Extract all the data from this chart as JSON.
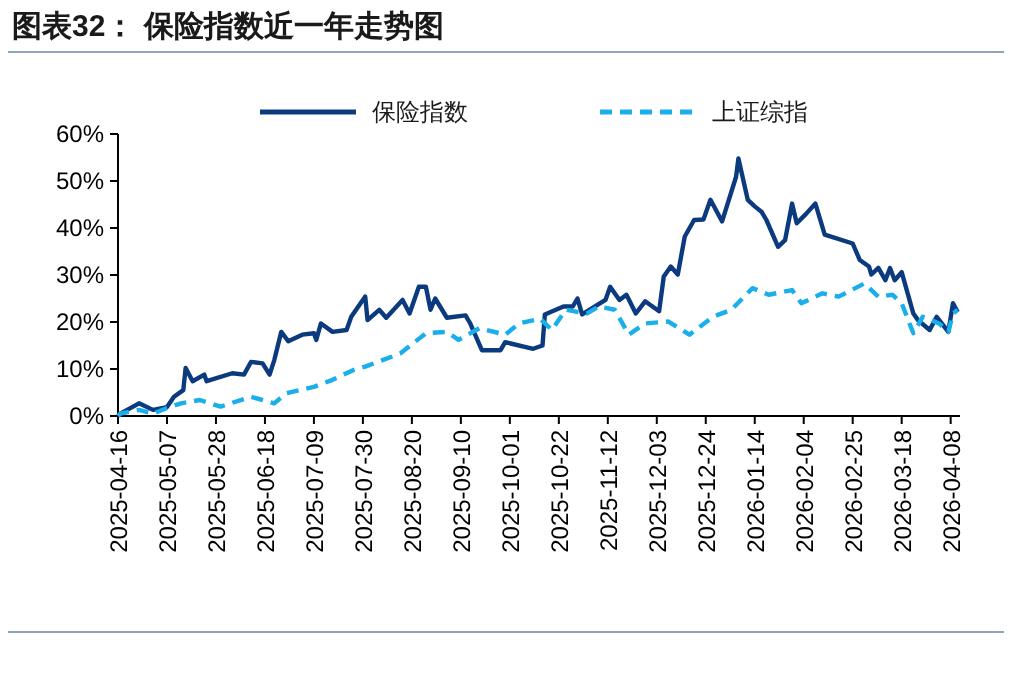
{
  "chart_data": {
    "type": "line",
    "title": "图表32： 保险指数近一年走势图",
    "legend": "top",
    "grid": false,
    "xlim": [
      "2025-04-16",
      "2026-04-12"
    ],
    "xticks": [
      "2025-04-16",
      "2025-05-07",
      "2025-05-28",
      "2025-06-18",
      "2025-07-09",
      "2025-07-30",
      "2025-08-20",
      "2025-09-10",
      "2025-10-01",
      "2025-10-22",
      "2025-11-12",
      "2025-12-03",
      "2025-12-24",
      "2026-01-14",
      "2026-02-04",
      "2026-02-25",
      "2026-03-18",
      "2026-04-08"
    ],
    "ylim": [
      0,
      60
    ],
    "yticks": [
      {
        "value": 0,
        "label": "0%"
      },
      {
        "value": 10,
        "label": "10%"
      },
      {
        "value": 20,
        "label": "20%"
      },
      {
        "value": 30,
        "label": "30%"
      },
      {
        "value": 40,
        "label": "40%"
      },
      {
        "value": 50,
        "label": "50%"
      },
      {
        "value": 60,
        "label": "60%"
      }
    ],
    "series": [
      {
        "name": "保险指数",
        "color": "#0b3a7e",
        "line_style": "solid",
        "x": [
          "2025-04-16",
          "2025-04-17",
          "2025-04-25",
          "2025-05-01",
          "2025-05-07",
          "2025-05-10",
          "2025-05-14",
          "2025-05-15",
          "2025-05-18",
          "2025-05-23",
          "2025-05-24",
          "2025-06-04",
          "2025-06-09",
          "2025-06-12",
          "2025-06-17",
          "2025-06-20",
          "2025-06-22",
          "2025-06-25",
          "2025-06-28",
          "2025-07-04",
          "2025-07-09",
          "2025-07-10",
          "2025-07-12",
          "2025-07-17",
          "2025-07-23",
          "2025-07-25",
          "2025-07-29",
          "2025-07-31",
          "2025-08-01",
          "2025-08-06",
          "2025-08-09",
          "2025-08-16",
          "2025-08-19",
          "2025-08-23",
          "2025-08-26",
          "2025-08-28",
          "2025-08-30",
          "2025-09-04",
          "2025-09-12",
          "2025-09-14",
          "2025-09-19",
          "2025-09-27",
          "2025-09-29",
          "2025-10-11",
          "2025-10-15",
          "2025-10-16",
          "2025-10-24",
          "2025-10-28",
          "2025-10-30",
          "2025-11-01",
          "2025-11-11",
          "2025-11-13",
          "2025-11-17",
          "2025-11-20",
          "2025-11-24",
          "2025-11-28",
          "2025-12-04",
          "2025-12-06",
          "2025-12-09",
          "2025-12-12",
          "2025-12-15",
          "2025-12-19",
          "2025-12-23",
          "2025-12-26",
          "2025-12-31",
          "2026-01-06",
          "2026-01-07",
          "2026-01-11",
          "2026-01-14",
          "2026-01-17",
          "2026-01-19",
          "2026-01-24",
          "2026-01-27",
          "2026-01-30",
          "2026-02-01",
          "2026-02-05",
          "2026-02-09",
          "2026-02-13",
          "2026-02-25",
          "2026-02-28",
          "2026-03-04",
          "2026-03-05",
          "2026-03-08",
          "2026-03-11",
          "2026-03-13",
          "2026-03-15",
          "2026-03-18",
          "2026-03-23",
          "2026-03-25",
          "2026-03-30",
          "2026-04-02",
          "2026-04-07",
          "2026-04-09",
          "2026-04-11"
        ],
        "values": [
          0,
          0.5,
          2.7,
          1.3,
          1.9,
          4.1,
          5.5,
          10.2,
          7.4,
          8.8,
          7.4,
          9.1,
          8.8,
          11.5,
          11.2,
          8.8,
          11.9,
          17.9,
          15.9,
          17.3,
          17.6,
          16.2,
          19.7,
          17.9,
          18.3,
          21.1,
          24,
          25.4,
          20.4,
          22.6,
          20.9,
          24.7,
          21.8,
          27.5,
          27.5,
          22.6,
          25,
          20.9,
          21.4,
          19.7,
          14,
          14,
          15.7,
          14.3,
          15,
          21.6,
          23.3,
          23.3,
          25,
          21.6,
          24.7,
          27.5,
          24.7,
          25.8,
          21.8,
          24.4,
          22.3,
          29.7,
          31.8,
          30.1,
          38.2,
          41.7,
          41.8,
          46,
          41.4,
          50.9,
          54.8,
          46,
          44.6,
          43.4,
          41.7,
          36,
          37.4,
          45.2,
          41,
          43,
          45.2,
          38.6,
          36.7,
          33.2,
          31.8,
          30.1,
          31.5,
          28.9,
          31.5,
          28.9,
          30.6,
          21.8,
          20.4,
          18.3,
          21.1,
          17.9,
          24,
          22.1
        ]
      },
      {
        "name": "上证综指",
        "color": "#1aaeea",
        "line_style": "dashed",
        "x": [
          "2025-04-16",
          "2025-04-17",
          "2025-04-25",
          "2025-05-01",
          "2025-05-07",
          "2025-05-13",
          "2025-05-21",
          "2025-05-30",
          "2025-06-12",
          "2025-06-22",
          "2025-06-27",
          "2025-07-09",
          "2025-07-17",
          "2025-07-26",
          "2025-07-31",
          "2025-08-15",
          "2025-08-26",
          "2025-09-04",
          "2025-09-09",
          "2025-09-18",
          "2025-09-29",
          "2025-10-05",
          "2025-10-14",
          "2025-10-19",
          "2025-10-25",
          "2025-11-03",
          "2025-11-08",
          "2025-11-15",
          "2025-11-21",
          "2025-11-28",
          "2025-12-08",
          "2025-12-17",
          "2025-12-27",
          "2026-01-04",
          "2026-01-13",
          "2026-01-20",
          "2026-01-30",
          "2026-02-03",
          "2026-02-12",
          "2026-02-19",
          "2026-03-02",
          "2026-03-08",
          "2026-03-14",
          "2026-03-18",
          "2026-03-23",
          "2026-03-27",
          "2026-04-03",
          "2026-04-07",
          "2026-04-09",
          "2026-04-11"
        ],
        "values": [
          0,
          0.5,
          1.3,
          0.5,
          1.7,
          2.7,
          3.4,
          2,
          4.1,
          2.7,
          4.8,
          6.2,
          7.7,
          9.8,
          10.5,
          13.3,
          17.6,
          17.9,
          16.2,
          18.7,
          17.3,
          19.7,
          20.7,
          18.3,
          22.6,
          21.8,
          23.3,
          22.6,
          17.3,
          19.7,
          20.1,
          17.3,
          21.1,
          22.6,
          27.2,
          25.8,
          26.8,
          24,
          26.1,
          25.4,
          28.2,
          25.4,
          25.8,
          24,
          17.6,
          21.1,
          19.7,
          17.9,
          21.8,
          22.6
        ]
      }
    ]
  }
}
